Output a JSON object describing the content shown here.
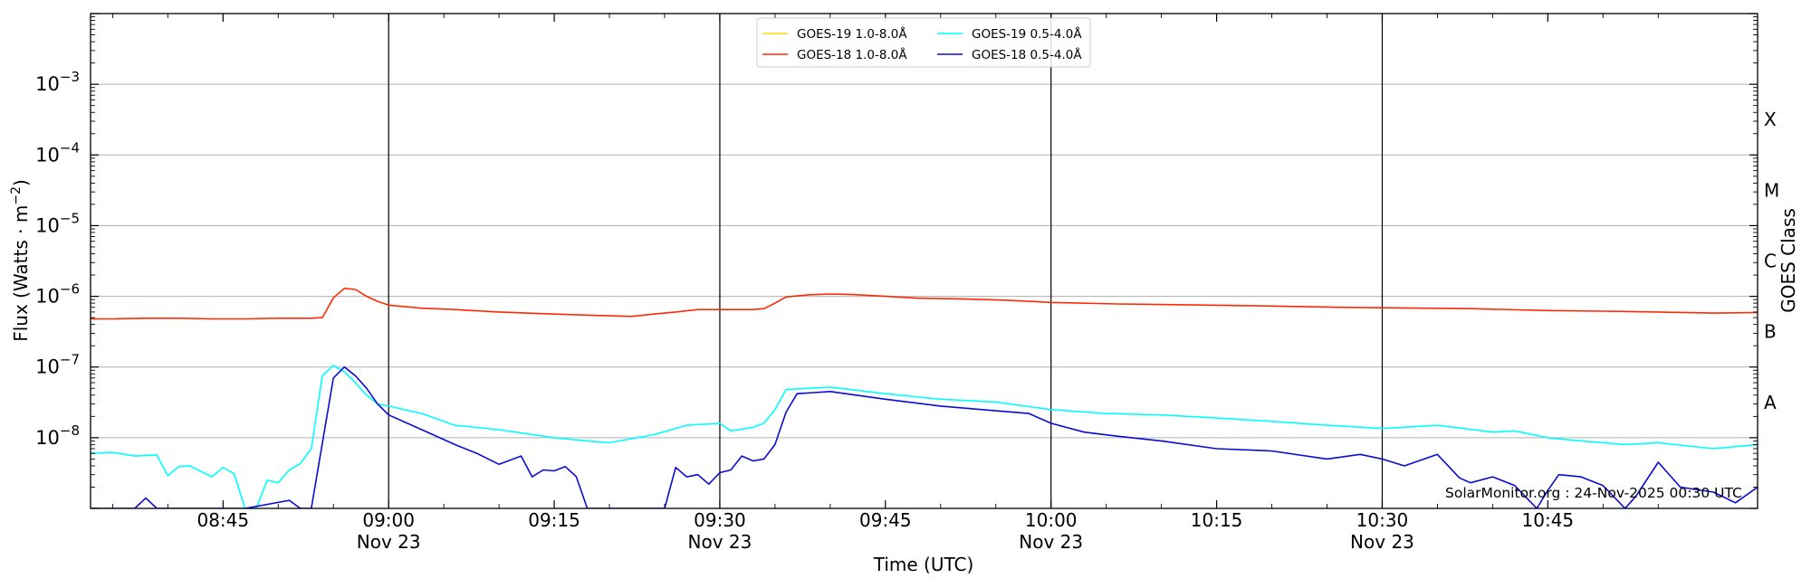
{
  "chart_data": {
    "type": "line",
    "xlabel": "Time (UTC)",
    "ylabel": "Flux (Watts · m",
    "ylabel_sup": "−2",
    "ylabel_close": ")",
    "right_label": "GOES Class",
    "yscale": "log",
    "xlim": [
      "08:33",
      "11:04"
    ],
    "ylim": [
      1e-09,
      0.01
    ],
    "grid": "horizontal",
    "legend_position": "top-center",
    "x_ticks_major": [
      {
        "t": "08:45",
        "label": "08:45",
        "sub": ""
      },
      {
        "t": "09:00",
        "label": "09:00",
        "sub": "Nov 23"
      },
      {
        "t": "09:15",
        "label": "09:15",
        "sub": ""
      },
      {
        "t": "09:30",
        "label": "09:30",
        "sub": "Nov 23"
      },
      {
        "t": "09:45",
        "label": "09:45",
        "sub": ""
      },
      {
        "t": "10:00",
        "label": "10:00",
        "sub": "Nov 23"
      },
      {
        "t": "10:15",
        "label": "10:15",
        "sub": ""
      },
      {
        "t": "10:30",
        "label": "10:30",
        "sub": "Nov 23"
      },
      {
        "t": "10:45",
        "label": "10:45",
        "sub": ""
      }
    ],
    "vlines": [
      "09:00",
      "09:30",
      "10:00",
      "10:30"
    ],
    "y_ticks": [
      {
        "value": 1e-08,
        "base": "10",
        "exp": "−8"
      },
      {
        "value": 1e-07,
        "base": "10",
        "exp": "−7"
      },
      {
        "value": 1e-06,
        "base": "10",
        "exp": "−6"
      },
      {
        "value": 1e-05,
        "base": "10",
        "exp": "−5"
      },
      {
        "value": 0.0001,
        "base": "10",
        "exp": "−4"
      },
      {
        "value": 0.001,
        "base": "10",
        "exp": "−3"
      }
    ],
    "goes_classes": [
      {
        "label": "A",
        "value": 3.16e-08
      },
      {
        "label": "B",
        "value": 3.16e-07
      },
      {
        "label": "C",
        "value": 3.16e-06
      },
      {
        "label": "M",
        "value": 3.16e-05
      },
      {
        "label": "X",
        "value": 0.000316
      }
    ],
    "annotation": "SolarMonitor.org : 24-Nov-2025 00:30 UTC",
    "series": [
      {
        "name": "GOES-19 1.0-8.0Å",
        "color": "#FFD700",
        "x": [],
        "y": []
      },
      {
        "name": "GOES-18 1.0-8.0Å",
        "color": "#FF2A00",
        "x": [
          "08:33",
          "08:35",
          "08:38",
          "08:41",
          "08:44",
          "08:47",
          "08:50",
          "08:53",
          "08:54",
          "08:55",
          "08:56",
          "08:57",
          "08:58",
          "08:59",
          "09:00",
          "09:03",
          "09:06",
          "09:10",
          "09:15",
          "09:20",
          "09:22",
          "09:24",
          "09:26",
          "09:28",
          "09:31",
          "09:33",
          "09:34",
          "09:35",
          "09:36",
          "09:38",
          "09:40",
          "09:42",
          "09:45",
          "09:48",
          "09:52",
          "09:56",
          "10:00",
          "10:06",
          "10:12",
          "10:20",
          "10:26",
          "10:30",
          "10:38",
          "10:45",
          "10:52",
          "11:00",
          "11:04"
        ],
        "y": [
          4.8e-07,
          4.8e-07,
          4.9e-07,
          4.9e-07,
          4.8e-07,
          4.8e-07,
          4.9e-07,
          4.9e-07,
          5e-07,
          9.5e-07,
          1.3e-06,
          1.25e-06,
          1e-06,
          8.5e-07,
          7.5e-07,
          6.8e-07,
          6.5e-07,
          6e-07,
          5.6e-07,
          5.3e-07,
          5.2e-07,
          5.6e-07,
          6e-07,
          6.5e-07,
          6.5e-07,
          6.5e-07,
          6.7e-07,
          8e-07,
          9.8e-07,
          1.05e-06,
          1.08e-06,
          1.06e-06,
          1e-06,
          9.4e-07,
          9.2e-07,
          8.8e-07,
          8.2e-07,
          7.8e-07,
          7.6e-07,
          7.3e-07,
          7e-07,
          6.9e-07,
          6.7e-07,
          6.3e-07,
          6.1e-07,
          5.8e-07,
          5.9e-07
        ]
      },
      {
        "name": "GOES-19 0.5-4.0Å",
        "color": "#00FFFF",
        "x": [
          "08:33",
          "08:35",
          "08:37",
          "08:39",
          "08:40",
          "08:41",
          "08:42",
          "08:44",
          "08:45",
          "08:46",
          "08:47",
          "08:48",
          "08:49",
          "08:50",
          "08:51",
          "08:52",
          "08:53",
          "08:54",
          "08:55",
          "08:56",
          "08:57",
          "08:58",
          "08:59",
          "09:00",
          "09:03",
          "09:06",
          "09:10",
          "09:15",
          "09:18",
          "09:20",
          "09:24",
          "09:27",
          "09:30",
          "09:31",
          "09:33",
          "09:34",
          "09:35",
          "09:36",
          "09:40",
          "09:45",
          "09:50",
          "09:55",
          "10:00",
          "10:05",
          "10:10",
          "10:15",
          "10:20",
          "10:25",
          "10:30",
          "10:35",
          "10:40",
          "10:42",
          "10:45",
          "10:48",
          "10:52",
          "10:55",
          "11:00",
          "11:04"
        ],
        "y": [
          6e-09,
          6.2e-09,
          5.5e-09,
          5.7e-09,
          2.9e-09,
          3.9e-09,
          4e-09,
          2.8e-09,
          3.8e-09,
          3.1e-09,
          1e-09,
          1e-09,
          2.5e-09,
          2.3e-09,
          3.5e-09,
          4.3e-09,
          7e-09,
          7.5e-08,
          1.05e-07,
          8.5e-08,
          6e-08,
          4e-08,
          3e-08,
          2.8e-08,
          2.2e-08,
          1.5e-08,
          1.3e-08,
          1e-08,
          9e-09,
          8.5e-09,
          1.1e-08,
          1.5e-08,
          1.6e-08,
          1.25e-08,
          1.4e-08,
          1.6e-08,
          2.5e-08,
          4.8e-08,
          5.2e-08,
          4.2e-08,
          3.5e-08,
          3.2e-08,
          2.5e-08,
          2.2e-08,
          2.1e-08,
          1.9e-08,
          1.7e-08,
          1.5e-08,
          1.35e-08,
          1.5e-08,
          1.2e-08,
          1.25e-08,
          1e-08,
          9e-09,
          8e-09,
          8.5e-09,
          7e-09,
          8e-09
        ]
      },
      {
        "name": "GOES-18 0.5-4.0Å",
        "color": "#0A0AD8",
        "x": [
          "08:33",
          "08:37",
          "08:38",
          "08:39",
          "08:43",
          "08:47",
          "08:51",
          "08:52",
          "08:53",
          "08:55",
          "08:56",
          "08:57",
          "08:58",
          "08:59",
          "09:00",
          "09:03",
          "09:06",
          "09:08",
          "09:10",
          "09:12",
          "09:13",
          "09:14",
          "09:15",
          "09:16",
          "09:17",
          "09:18",
          "09:20",
          "09:22",
          "09:24",
          "09:25",
          "09:26",
          "09:27",
          "09:28",
          "09:29",
          "09:30",
          "09:31",
          "09:32",
          "09:33",
          "09:34",
          "09:35",
          "09:36",
          "09:37",
          "09:40",
          "09:45",
          "09:50",
          "09:55",
          "09:58",
          "10:00",
          "10:03",
          "10:06",
          "10:10",
          "10:15",
          "10:20",
          "10:25",
          "10:28",
          "10:30",
          "10:32",
          "10:35",
          "10:37",
          "10:38",
          "10:40",
          "10:42",
          "10:44",
          "10:45",
          "10:46",
          "10:48",
          "10:50",
          "10:52",
          "10:53",
          "10:55",
          "10:57",
          "11:00",
          "11:02",
          "11:04"
        ],
        "y": [
          1e-09,
          1e-09,
          1.4e-09,
          1e-09,
          1e-09,
          1e-09,
          1.3e-09,
          1e-09,
          1e-09,
          7e-08,
          1e-07,
          7.5e-08,
          5e-08,
          3e-08,
          2.1e-08,
          1.3e-08,
          8e-09,
          6e-09,
          4.2e-09,
          5.5e-09,
          2.8e-09,
          3.5e-09,
          3.4e-09,
          3.9e-09,
          2.8e-09,
          1e-09,
          1e-09,
          1e-09,
          1e-09,
          1e-09,
          3.8e-09,
          2.8e-09,
          3e-09,
          2.2e-09,
          3.2e-09,
          3.5e-09,
          5.5e-09,
          4.7e-09,
          5e-09,
          8e-09,
          2.3e-08,
          4.2e-08,
          4.5e-08,
          3.5e-08,
          2.8e-08,
          2.4e-08,
          2.2e-08,
          1.6e-08,
          1.2e-08,
          1.05e-08,
          9e-09,
          7e-09,
          6.5e-09,
          5e-09,
          5.8e-09,
          5e-09,
          4e-09,
          5.8e-09,
          2.7e-09,
          2.3e-09,
          2.8e-09,
          2.1e-09,
          1e-09,
          1.8e-09,
          3e-09,
          2.8e-09,
          2.1e-09,
          1e-09,
          1.5e-09,
          4.5e-09,
          2e-09,
          1.7e-09,
          1.2e-09,
          2e-09
        ]
      }
    ]
  }
}
